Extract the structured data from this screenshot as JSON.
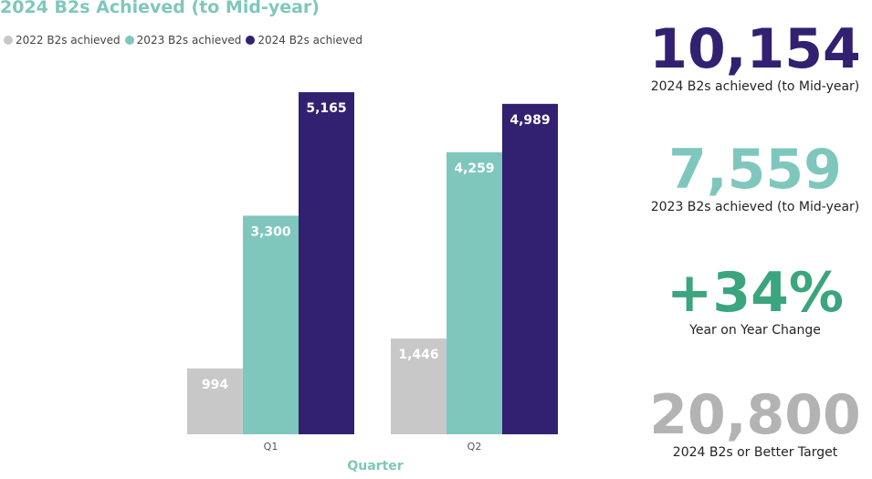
{
  "chart_data": {
    "type": "bar",
    "title": "2024 B2s Achieved (to Mid-year)",
    "xlabel": "Quarter",
    "ylabel": "",
    "categories": [
      "Q1",
      "Q2"
    ],
    "series": [
      {
        "name": "2022 B2s achieved",
        "values": [
          994,
          1446
        ],
        "color": "#c8c8c8"
      },
      {
        "name": "2023 B2s achieved",
        "values": [
          3300,
          4259
        ],
        "color": "#7fc7bd"
      },
      {
        "name": "2024 B2s achieved",
        "values": [
          5165,
          4989
        ],
        "color": "#312170"
      }
    ],
    "data_labels": [
      [
        "994",
        "1,446"
      ],
      [
        "3,300",
        "4,259"
      ],
      [
        "5,165",
        "4,989"
      ]
    ],
    "ylim": [
      0,
      5400
    ],
    "legend": "top-left",
    "grid": false
  },
  "kpis": [
    {
      "value": "10,154",
      "label": "2024 B2s achieved (to Mid-year)",
      "color": "#312170"
    },
    {
      "value": "7,559",
      "label": "2023 B2s achieved (to Mid-year)",
      "color": "#7fc7bd"
    },
    {
      "value": "+34%",
      "label": "Year on Year Change",
      "color": "#3aa57f"
    },
    {
      "value": "20,800",
      "label": "2024 B2s or Better Target",
      "color": "#b3b3b3"
    }
  ]
}
